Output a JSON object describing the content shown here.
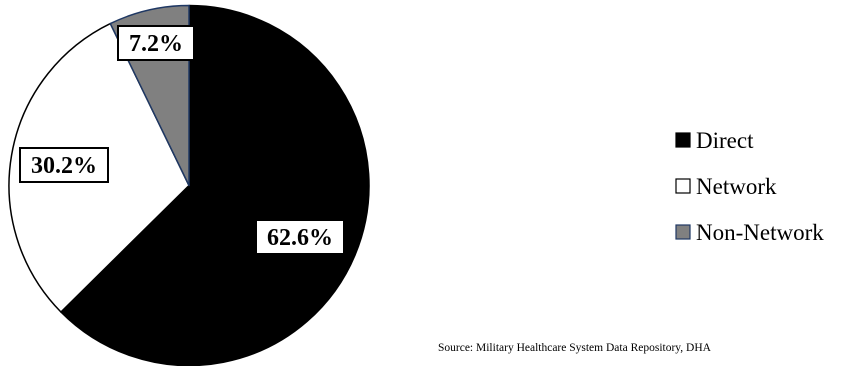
{
  "chart_data": {
    "type": "pie",
    "title": "",
    "start_angle_deg": 0,
    "direction": "clockwise",
    "slices": [
      {
        "name": "Direct",
        "value": 62.6,
        "label": "62.6%",
        "color": "#000000",
        "stroke": "#000000"
      },
      {
        "name": "Network",
        "value": 30.2,
        "label": "30.2%",
        "color": "#ffffff",
        "stroke": "#000000"
      },
      {
        "name": "Non-Network",
        "value": 7.2,
        "label": "7.2%",
        "color": "#808080",
        "stroke": "#1f3864"
      }
    ],
    "legend": {
      "placement": "right",
      "items": [
        "Direct",
        "Network",
        "Non-Network"
      ]
    },
    "source_note": "Source: Military Healthcare System Data Repository, DHA"
  }
}
